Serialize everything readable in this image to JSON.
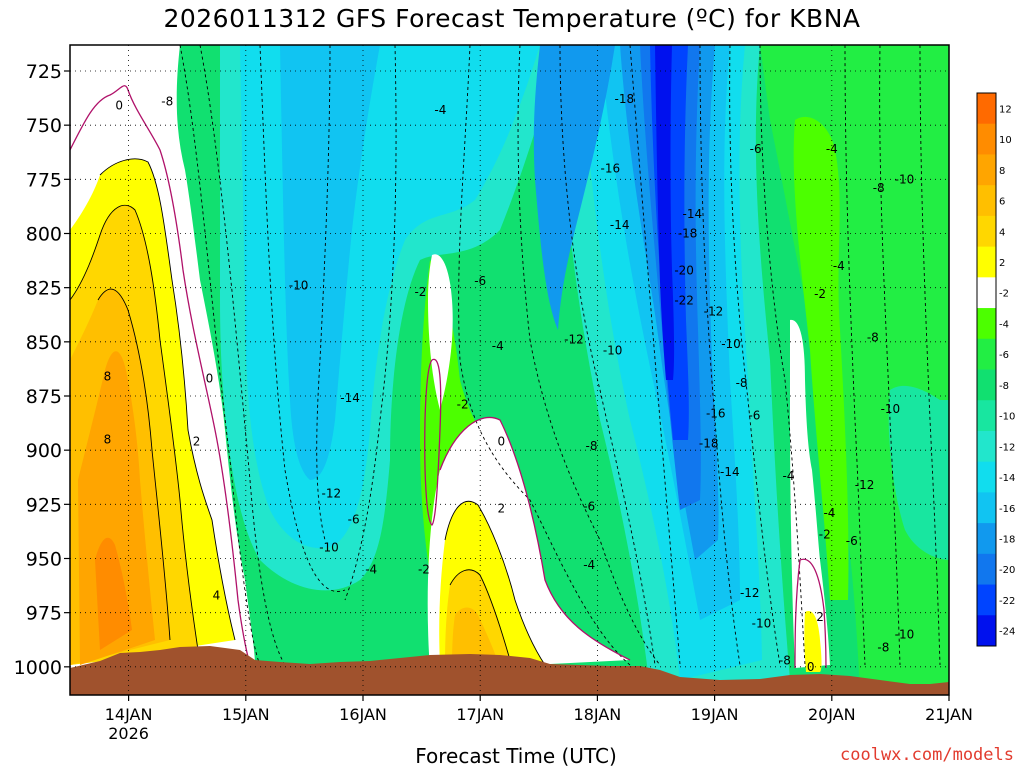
{
  "chart_data": {
    "type": "heatmap",
    "title": "2026011312 GFS Forecast Temperature (ºC) for KBNA",
    "xlabel": "Forecast Time (UTC)",
    "ylabel": "",
    "credit": "coolwx.com/models",
    "x_ticks": [
      "14JAN",
      "15JAN",
      "16JAN",
      "17JAN",
      "18JAN",
      "19JAN",
      "20JAN",
      "21JAN"
    ],
    "x_year_label": "2026",
    "x_range_days": [
      13.5,
      21.0
    ],
    "y_ticks": [
      725,
      750,
      775,
      800,
      825,
      850,
      875,
      900,
      925,
      950,
      975,
      1000
    ],
    "y_range_hpa": [
      713,
      1013
    ],
    "colorbar": {
      "labels": [
        "12",
        "10",
        "8",
        "6",
        "4",
        "2",
        "-2",
        "-4",
        "-6",
        "-8",
        "-10",
        "-12",
        "-14",
        "-16",
        "-18",
        "-20",
        "-22",
        "-24"
      ],
      "colors": [
        "#ff6a00",
        "#ff8c00",
        "#ffa500",
        "#ffbf00",
        "#ffd700",
        "#ffff00",
        "#ffffff",
        "#4cff00",
        "#22ee44",
        "#11e070",
        "#18e6a0",
        "#22e6cc",
        "#11ddee",
        "#11c4f2",
        "#1199ee",
        "#1177ee",
        "#0044ff",
        "#0011ee"
      ]
    },
    "contour_labels": [
      {
        "day": 13.92,
        "p": 741,
        "v": "0"
      },
      {
        "day": 14.33,
        "p": 739,
        "v": "-8"
      },
      {
        "day": 15.45,
        "p": 824,
        "v": "-10"
      },
      {
        "day": 13.82,
        "p": 866,
        "v": "8"
      },
      {
        "day": 13.82,
        "p": 895,
        "v": "8"
      },
      {
        "day": 14.69,
        "p": 867,
        "v": "0"
      },
      {
        "day": 14.58,
        "p": 896,
        "v": "2"
      },
      {
        "day": 14.75,
        "p": 967,
        "v": "4"
      },
      {
        "day": 15.89,
        "p": 876,
        "v": "-14"
      },
      {
        "day": 15.73,
        "p": 920,
        "v": "-12"
      },
      {
        "day": 15.71,
        "p": 945,
        "v": "-10"
      },
      {
        "day": 15.92,
        "p": 932,
        "v": "-6"
      },
      {
        "day": 16.07,
        "p": 955,
        "v": "-4"
      },
      {
        "day": 16.49,
        "p": 827,
        "v": "-2"
      },
      {
        "day": 16.52,
        "p": 955,
        "v": "-2"
      },
      {
        "day": 16.66,
        "p": 743,
        "v": "-4"
      },
      {
        "day": 17.0,
        "p": 822,
        "v": "-6"
      },
      {
        "day": 17.15,
        "p": 852,
        "v": "-4"
      },
      {
        "day": 16.85,
        "p": 879,
        "v": "-2"
      },
      {
        "day": 17.18,
        "p": 896,
        "v": "0"
      },
      {
        "day": 17.18,
        "p": 927,
        "v": "2"
      },
      {
        "day": 18.23,
        "p": 738,
        "v": "-18"
      },
      {
        "day": 18.11,
        "p": 770,
        "v": "-16"
      },
      {
        "day": 18.19,
        "p": 796,
        "v": "-14"
      },
      {
        "day": 17.8,
        "p": 849,
        "v": "-12"
      },
      {
        "day": 18.13,
        "p": 854,
        "v": "-10"
      },
      {
        "day": 17.95,
        "p": 898,
        "v": "-8"
      },
      {
        "day": 17.93,
        "p": 926,
        "v": "-6"
      },
      {
        "day": 17.93,
        "p": 953,
        "v": "-4"
      },
      {
        "day": 18.77,
        "p": 800,
        "v": "-18"
      },
      {
        "day": 18.81,
        "p": 791,
        "v": "-14"
      },
      {
        "day": 18.74,
        "p": 817,
        "v": "-20"
      },
      {
        "day": 18.74,
        "p": 831,
        "v": "-22"
      },
      {
        "day": 18.99,
        "p": 836,
        "v": "-12"
      },
      {
        "day": 19.14,
        "p": 851,
        "v": "-10"
      },
      {
        "day": 19.23,
        "p": 869,
        "v": "-8"
      },
      {
        "day": 19.34,
        "p": 884,
        "v": "-6"
      },
      {
        "day": 19.01,
        "p": 883,
        "v": "-16"
      },
      {
        "day": 18.95,
        "p": 897,
        "v": "-18"
      },
      {
        "day": 19.13,
        "p": 910,
        "v": "-14"
      },
      {
        "day": 19.35,
        "p": 761,
        "v": "-6"
      },
      {
        "day": 20.0,
        "p": 761,
        "v": "-4"
      },
      {
        "day": 20.06,
        "p": 815,
        "v": "-4"
      },
      {
        "day": 20.4,
        "p": 779,
        "v": "-8"
      },
      {
        "day": 20.62,
        "p": 775,
        "v": "-10"
      },
      {
        "day": 19.9,
        "p": 828,
        "v": "-2"
      },
      {
        "day": 20.35,
        "p": 848,
        "v": "-8"
      },
      {
        "day": 20.5,
        "p": 881,
        "v": "-10"
      },
      {
        "day": 20.28,
        "p": 916,
        "v": "-12"
      },
      {
        "day": 19.98,
        "p": 929,
        "v": "-4"
      },
      {
        "day": 19.94,
        "p": 939,
        "v": "-2"
      },
      {
        "day": 20.17,
        "p": 942,
        "v": "-6"
      },
      {
        "day": 19.63,
        "p": 912,
        "v": "-4"
      },
      {
        "day": 19.3,
        "p": 966,
        "v": "-12"
      },
      {
        "day": 19.4,
        "p": 980,
        "v": "-10"
      },
      {
        "day": 19.9,
        "p": 977,
        "v": "2"
      },
      {
        "day": 19.82,
        "p": 1000,
        "v": "0"
      },
      {
        "day": 19.6,
        "p": 997,
        "v": "-8"
      },
      {
        "day": 20.62,
        "p": 985,
        "v": "-10"
      },
      {
        "day": 20.44,
        "p": 991,
        "v": "-8"
      }
    ]
  }
}
